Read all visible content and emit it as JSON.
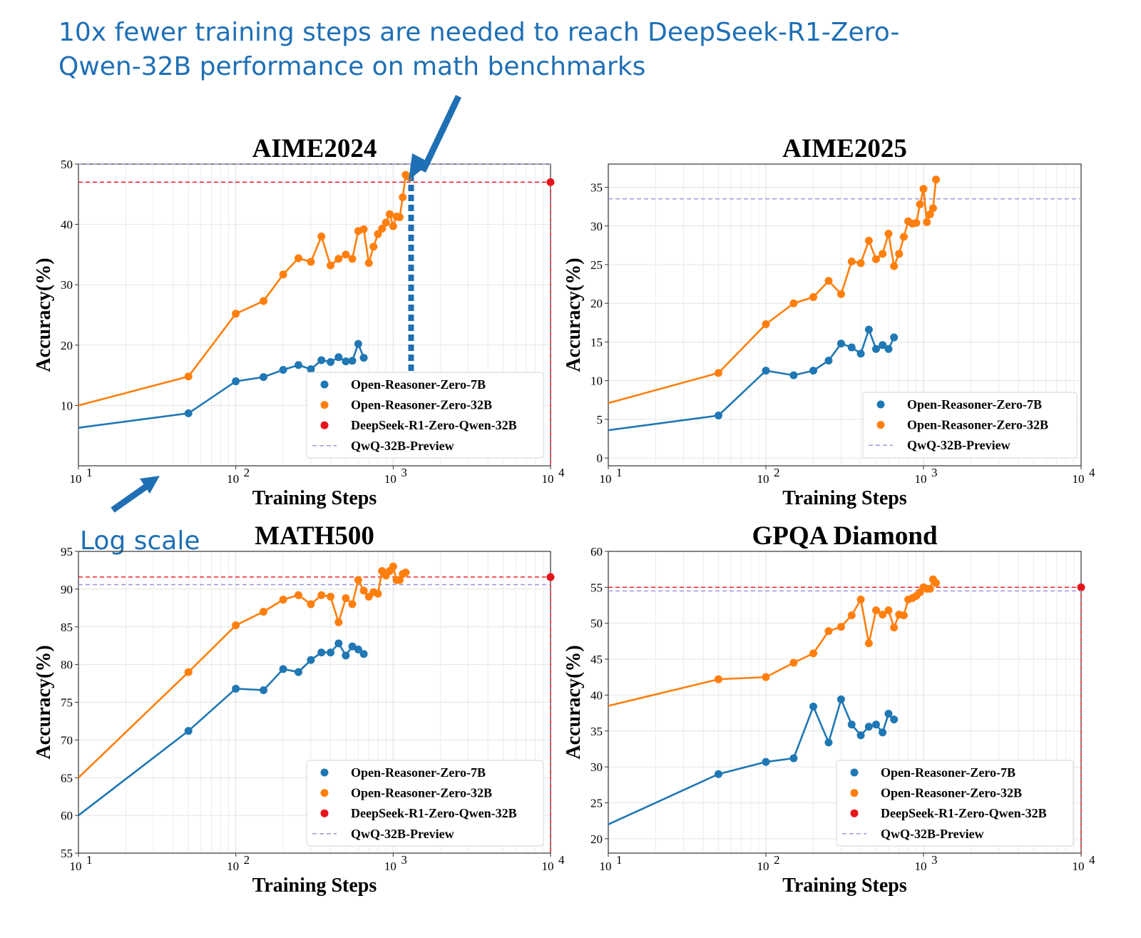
{
  "annotations": {
    "headline_line1": "10x fewer training steps are needed to reach DeepSeek-R1-Zero-",
    "headline_line2": "Qwen-32B performance on math benchmarks",
    "log_scale": "Log scale",
    "color": "#1f6fb5"
  },
  "colors": {
    "open_reasoner_zero_7b": "#1f77b4",
    "open_reasoner_zero_32b": "#ff7f0e",
    "deepseek_r1_zero_qwen_32b": "#e8141b",
    "qwq_32b_preview": "#9b8fd6"
  },
  "chart_data": [
    {
      "type": "line",
      "title": "AIME2024",
      "xlabel": "Training Steps",
      "ylabel": "Accuracy(%)",
      "xscale": "log",
      "xlim": [
        10,
        10000
      ],
      "ylim": [
        0,
        50
      ],
      "yticks": [
        10,
        20,
        30,
        40,
        50
      ],
      "xticks": [
        {
          "base": "10",
          "exp": "1",
          "value": 10
        },
        {
          "base": "10",
          "exp": "2",
          "value": 100
        },
        {
          "base": "10",
          "exp": "3",
          "value": 1000
        },
        {
          "base": "10",
          "exp": "4",
          "value": 10000
        }
      ],
      "grid": true,
      "legend_placement": "lower-right",
      "legend": [
        "Open-Reasoner-Zero-7B",
        "Open-Reasoner-Zero-32B",
        "DeepSeek-R1-Zero-Qwen-32B",
        "QwQ-32B-Preview"
      ],
      "series": [
        {
          "name": "Open-Reasoner-Zero-7B",
          "color_key": "open_reasoner_zero_7b",
          "x": [
            10,
            50,
            100,
            150,
            200,
            250,
            300,
            350,
            400,
            450,
            500,
            550,
            600,
            650
          ],
          "y": [
            6.3,
            8.7,
            14.0,
            14.7,
            15.9,
            16.7,
            16.0,
            17.5,
            17.2,
            18.0,
            17.3,
            17.4,
            20.2,
            17.9
          ]
        },
        {
          "name": "Open-Reasoner-Zero-32B",
          "color_key": "open_reasoner_zero_32b",
          "x": [
            10,
            50,
            100,
            150,
            200,
            250,
            300,
            350,
            400,
            450,
            500,
            550,
            600,
            650,
            700,
            750,
            800,
            850,
            900,
            950,
            1000,
            1050,
            1100,
            1150,
            1200,
            1250
          ],
          "y": [
            10.0,
            14.8,
            25.2,
            27.3,
            31.7,
            34.4,
            33.8,
            38.0,
            33.2,
            34.3,
            35.0,
            34.3,
            38.9,
            39.2,
            33.6,
            36.3,
            38.4,
            39.3,
            40.3,
            41.7,
            39.7,
            41.3,
            41.2,
            44.5,
            48.2,
            47.9
          ]
        },
        {
          "name": "DeepSeek-R1-Zero-Qwen-32B",
          "color_key": "deepseek_r1_zero_qwen_32b",
          "x": [
            10000
          ],
          "y": [
            47.0
          ],
          "reference": "dashed-crosshair"
        },
        {
          "name": "QwQ-32B-Preview",
          "color_key": "qwq_32b_preview",
          "y_const": 50.0,
          "reference": "dashed-horizontal"
        }
      ],
      "marker_10x": {
        "x": 1300
      }
    },
    {
      "type": "line",
      "title": "AIME2025",
      "xlabel": "Training Steps",
      "ylabel": "Accuracy(%)",
      "xscale": "log",
      "xlim": [
        10,
        10000
      ],
      "ylim": [
        -1,
        38
      ],
      "yticks": [
        0,
        5,
        10,
        15,
        20,
        25,
        30,
        35
      ],
      "xticks": [
        {
          "base": "10",
          "exp": "1",
          "value": 10
        },
        {
          "base": "10",
          "exp": "2",
          "value": 100
        },
        {
          "base": "10",
          "exp": "3",
          "value": 1000
        },
        {
          "base": "10",
          "exp": "4",
          "value": 10000
        }
      ],
      "grid": true,
      "legend_placement": "lower-right",
      "legend": [
        "Open-Reasoner-Zero-7B",
        "Open-Reasoner-Zero-32B",
        "QwQ-32B-Preview"
      ],
      "series": [
        {
          "name": "Open-Reasoner-Zero-7B",
          "color_key": "open_reasoner_zero_7b",
          "x": [
            10,
            50,
            100,
            150,
            200,
            250,
            300,
            350,
            400,
            450,
            500,
            550,
            600,
            650
          ],
          "y": [
            3.6,
            5.5,
            11.3,
            10.7,
            11.3,
            12.6,
            14.8,
            14.3,
            13.5,
            16.6,
            14.1,
            14.6,
            14.1,
            15.6
          ]
        },
        {
          "name": "Open-Reasoner-Zero-32B",
          "color_key": "open_reasoner_zero_32b",
          "x": [
            10,
            50,
            100,
            150,
            200,
            250,
            300,
            350,
            400,
            450,
            500,
            550,
            600,
            650,
            700,
            750,
            800,
            850,
            900,
            950,
            1000,
            1050,
            1100,
            1150,
            1200
          ],
          "y": [
            7.1,
            11.0,
            17.3,
            20.0,
            20.8,
            22.9,
            21.2,
            25.4,
            25.2,
            28.1,
            25.7,
            26.4,
            29.0,
            24.8,
            26.4,
            28.6,
            30.6,
            30.3,
            30.4,
            32.8,
            34.8,
            30.5,
            31.5,
            32.3,
            36.0
          ]
        },
        {
          "name": "QwQ-32B-Preview",
          "color_key": "qwq_32b_preview",
          "y_const": 33.5,
          "reference": "dashed-horizontal"
        }
      ]
    },
    {
      "type": "line",
      "title": "MATH500",
      "xlabel": "Training Steps",
      "ylabel": "Accuracy(%)",
      "xscale": "log",
      "xlim": [
        10,
        10000
      ],
      "ylim": [
        55,
        95
      ],
      "yticks": [
        55,
        60,
        65,
        70,
        75,
        80,
        85,
        90,
        95
      ],
      "xticks": [
        {
          "base": "10",
          "exp": "1",
          "value": 10
        },
        {
          "base": "10",
          "exp": "2",
          "value": 100
        },
        {
          "base": "10",
          "exp": "3",
          "value": 1000
        },
        {
          "base": "10",
          "exp": "4",
          "value": 10000
        }
      ],
      "grid": true,
      "legend_placement": "lower-right",
      "legend": [
        "Open-Reasoner-Zero-7B",
        "Open-Reasoner-Zero-32B",
        "DeepSeek-R1-Zero-Qwen-32B",
        "QwQ-32B-Preview"
      ],
      "series": [
        {
          "name": "Open-Reasoner-Zero-7B",
          "color_key": "open_reasoner_zero_7b",
          "x": [
            10,
            50,
            100,
            150,
            200,
            250,
            300,
            350,
            400,
            450,
            500,
            550,
            600,
            650
          ],
          "y": [
            60.0,
            71.2,
            76.8,
            76.6,
            79.4,
            79.0,
            80.6,
            81.6,
            81.6,
            82.8,
            81.2,
            82.4,
            82.0,
            81.4
          ]
        },
        {
          "name": "Open-Reasoner-Zero-32B",
          "color_key": "open_reasoner_zero_32b",
          "x": [
            10,
            50,
            100,
            150,
            200,
            250,
            300,
            350,
            400,
            450,
            500,
            550,
            600,
            650,
            700,
            750,
            800,
            850,
            900,
            950,
            1000,
            1050,
            1100,
            1150,
            1200
          ],
          "y": [
            65.0,
            79.0,
            85.2,
            87.0,
            88.6,
            89.2,
            88.0,
            89.2,
            89.0,
            85.6,
            88.8,
            88.0,
            91.2,
            89.8,
            89.0,
            89.6,
            89.4,
            92.4,
            91.8,
            92.4,
            93.0,
            91.2,
            91.2,
            92.0,
            92.2
          ]
        },
        {
          "name": "DeepSeek-R1-Zero-Qwen-32B",
          "color_key": "deepseek_r1_zero_qwen_32b",
          "x": [
            10000
          ],
          "y": [
            91.6
          ],
          "reference": "dashed-crosshair"
        },
        {
          "name": "QwQ-32B-Preview",
          "color_key": "qwq_32b_preview",
          "y_const": 90.6,
          "reference": "dashed-horizontal"
        }
      ]
    },
    {
      "type": "line",
      "title": "GPQA Diamond",
      "xlabel": "Training Steps",
      "ylabel": "Accuracy(%)",
      "xscale": "log",
      "xlim": [
        10,
        10000
      ],
      "ylim": [
        18,
        60
      ],
      "yticks": [
        20,
        25,
        30,
        35,
        40,
        45,
        50,
        55,
        60
      ],
      "xticks": [
        {
          "base": "10",
          "exp": "1",
          "value": 10
        },
        {
          "base": "10",
          "exp": "2",
          "value": 100
        },
        {
          "base": "10",
          "exp": "3",
          "value": 1000
        },
        {
          "base": "10",
          "exp": "4",
          "value": 10000
        }
      ],
      "grid": true,
      "legend_placement": "lower-right",
      "legend": [
        "Open-Reasoner-Zero-7B",
        "Open-Reasoner-Zero-32B",
        "DeepSeek-R1-Zero-Qwen-32B",
        "QwQ-32B-Preview"
      ],
      "series": [
        {
          "name": "Open-Reasoner-Zero-7B",
          "color_key": "open_reasoner_zero_7b",
          "x": [
            10,
            50,
            100,
            150,
            200,
            250,
            300,
            350,
            400,
            450,
            500,
            550,
            600,
            650
          ],
          "y": [
            22.0,
            29.0,
            30.7,
            31.2,
            38.4,
            33.4,
            39.4,
            35.9,
            34.4,
            35.6,
            35.9,
            34.8,
            37.4,
            36.6
          ]
        },
        {
          "name": "Open-Reasoner-Zero-32B",
          "color_key": "open_reasoner_zero_32b",
          "x": [
            10,
            50,
            100,
            150,
            200,
            250,
            300,
            350,
            400,
            450,
            500,
            550,
            600,
            650,
            700,
            750,
            800,
            850,
            900,
            950,
            1000,
            1050,
            1100,
            1150,
            1200
          ],
          "y": [
            38.5,
            42.2,
            42.5,
            44.5,
            45.8,
            48.9,
            49.5,
            51.1,
            53.3,
            47.2,
            51.8,
            51.2,
            51.8,
            49.4,
            51.2,
            51.1,
            53.3,
            53.5,
            53.8,
            54.3,
            55.0,
            54.8,
            54.8,
            56.1,
            55.6
          ]
        },
        {
          "name": "DeepSeek-R1-Zero-Qwen-32B",
          "color_key": "deepseek_r1_zero_qwen_32b",
          "x": [
            10000
          ],
          "y": [
            55.0
          ],
          "reference": "dashed-crosshair"
        },
        {
          "name": "QwQ-32B-Preview",
          "color_key": "qwq_32b_preview",
          "y_const": 54.5,
          "reference": "dashed-horizontal"
        }
      ]
    }
  ]
}
